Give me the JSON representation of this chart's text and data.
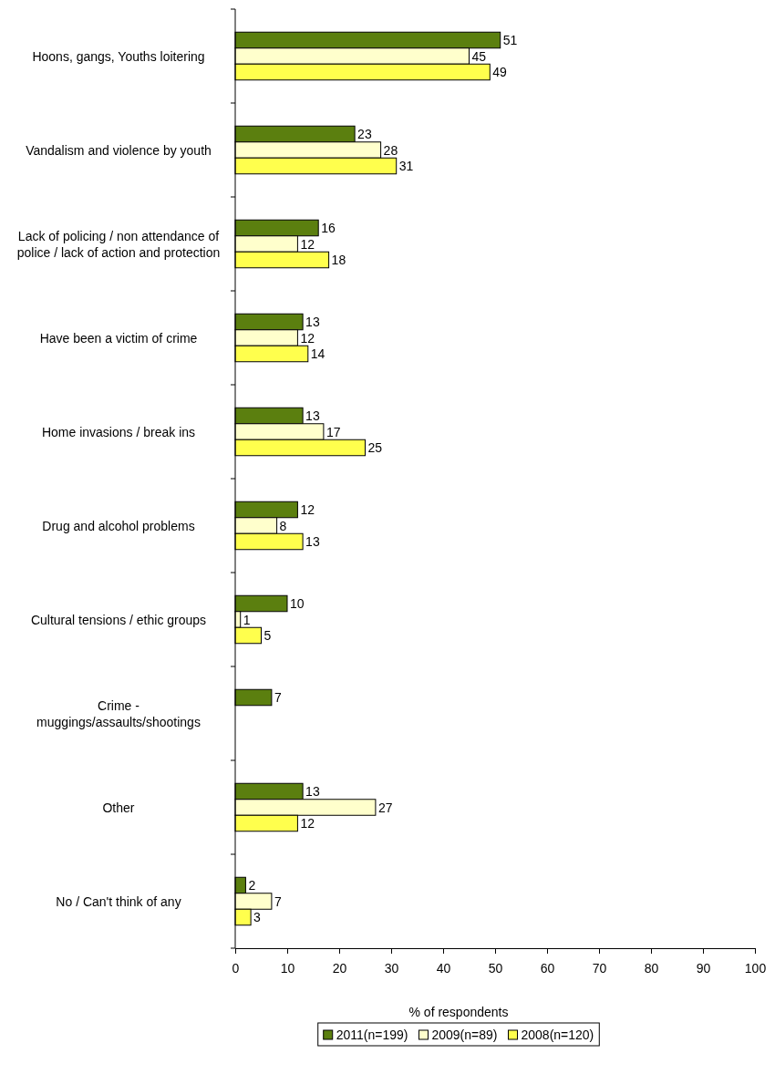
{
  "chart_data": {
    "type": "bar",
    "orientation": "horizontal",
    "xlabel": "% of respondents",
    "categories": [
      "Hoons, gangs, Youths loitering",
      "Vandalism and violence by youth",
      "Lack of policing / non attendance of police / lack of action and protection",
      "Have been a victim of crime",
      "Home invasions / break ins",
      "Drug and alcohol problems",
      "Cultural tensions / ethic groups",
      "Crime - muggings/assaults/shootings",
      "Other",
      "No / Can't think of any"
    ],
    "series": [
      {
        "name": "2011(n=199)",
        "color": "#5b7f0f",
        "values": [
          51,
          23,
          16,
          13,
          13,
          12,
          10,
          7,
          13,
          2
        ]
      },
      {
        "name": "2009(n=89)",
        "color": "#ffffcc",
        "values": [
          45,
          28,
          12,
          12,
          17,
          8,
          1,
          null,
          27,
          7
        ]
      },
      {
        "name": "2008(n=120)",
        "color": "#ffff4d",
        "values": [
          49,
          31,
          18,
          14,
          25,
          13,
          5,
          null,
          12,
          3
        ]
      }
    ],
    "xlim": [
      0,
      100
    ],
    "xticks": [
      0,
      10,
      20,
      30,
      40,
      50,
      60,
      70,
      80,
      90,
      100
    ],
    "data_labels": true,
    "legend": "bottom",
    "grid": false
  }
}
